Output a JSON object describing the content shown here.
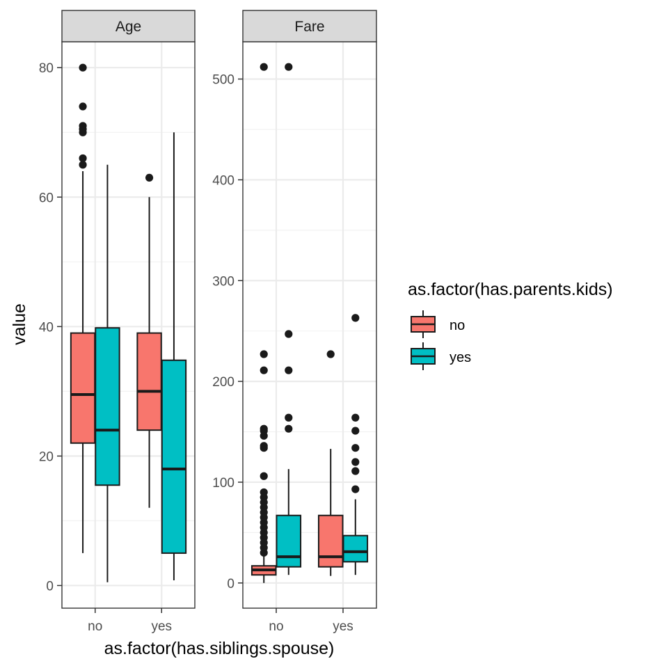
{
  "chart_data": {
    "type": "boxplot",
    "xlabel": "as.factor(has.siblings.spouse)",
    "ylabel": "value",
    "categories": [
      "no",
      "yes"
    ],
    "legend": {
      "title": "as.factor(has.parents.kids)",
      "position": "right",
      "entries": [
        {
          "label": "no",
          "color": "#F8766D"
        },
        {
          "label": "yes",
          "color": "#00BFC4"
        }
      ]
    },
    "grid": true,
    "facets": [
      {
        "label": "Age",
        "ylim": [
          -3.5,
          84
        ],
        "ticks": [
          0,
          20,
          40,
          60,
          80
        ],
        "groups": [
          {
            "category": "no",
            "series": "no",
            "whisker_low": 5,
            "q1": 22,
            "median": 29.5,
            "q3": 39,
            "whisker_high": 64,
            "outliers": [
              65,
              66,
              70,
              70.5,
              71,
              74,
              80
            ]
          },
          {
            "category": "no",
            "series": "yes",
            "whisker_low": 0.5,
            "q1": 15.5,
            "median": 24,
            "q3": 39.8,
            "whisker_high": 65,
            "outliers": []
          },
          {
            "category": "yes",
            "series": "no",
            "whisker_low": 12,
            "q1": 24,
            "median": 30,
            "q3": 39,
            "whisker_high": 60,
            "outliers": [
              63
            ]
          },
          {
            "category": "yes",
            "series": "yes",
            "whisker_low": 0.8,
            "q1": 5,
            "median": 18,
            "q3": 34.8,
            "whisker_high": 70,
            "outliers": []
          }
        ]
      },
      {
        "label": "Fare",
        "ylim": [
          -25,
          537
        ],
        "ticks": [
          0,
          100,
          200,
          300,
          400,
          500
        ],
        "groups": [
          {
            "category": "no",
            "series": "no",
            "whisker_low": 0,
            "q1": 8,
            "median": 13,
            "q3": 17,
            "whisker_high": 27,
            "outliers": [
              30,
              35,
              40,
              45,
              50,
              55,
              60,
              65,
              70,
              75,
              80,
              85,
              90,
              106,
              134,
              136,
              146,
              151,
              153,
              211,
              227,
              512
            ]
          },
          {
            "category": "no",
            "series": "yes",
            "whisker_low": 8,
            "q1": 16,
            "median": 26,
            "q3": 67,
            "whisker_high": 113,
            "outliers": [
              153,
              164,
              211,
              247,
              512
            ]
          },
          {
            "category": "yes",
            "series": "no",
            "whisker_low": 7,
            "q1": 16,
            "median": 26,
            "q3": 67,
            "whisker_high": 133,
            "outliers": [
              227
            ]
          },
          {
            "category": "yes",
            "series": "yes",
            "whisker_low": 8,
            "q1": 21,
            "median": 31,
            "q3": 47,
            "whisker_high": 83,
            "outliers": [
              93,
              111,
              120,
              134,
              151,
              164,
              263
            ]
          }
        ]
      }
    ]
  }
}
